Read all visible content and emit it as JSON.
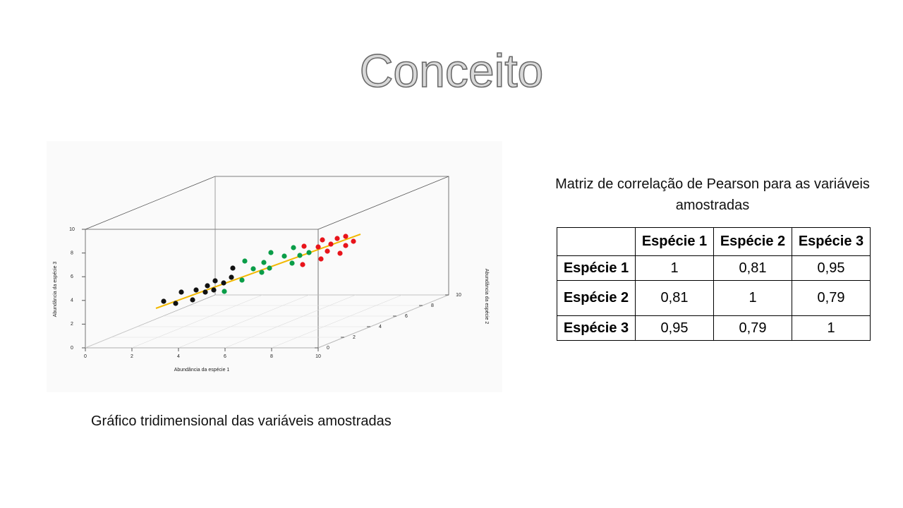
{
  "title": "Conceito",
  "figure": {
    "x_axis_label": "Abundância da espécie 1",
    "y_axis_label": "Abundância da espécie 3",
    "z_axis_label": "Abundância da espécie 2",
    "x_ticks": [
      0,
      2,
      4,
      6,
      8,
      10
    ],
    "y_ticks": [
      0,
      2,
      4,
      6,
      8,
      10
    ],
    "z_ticks": [
      0,
      2,
      4,
      6,
      8,
      10
    ]
  },
  "figure_caption": "Gráfico tridimensional das variáveis amostradas",
  "table": {
    "caption": "Matriz de correlação de Pearson para as variáveis amostradas",
    "columns": [
      "Espécie 1",
      "Espécie 2",
      "Espécie 3"
    ],
    "rows": [
      {
        "label": "Espécie 1",
        "values": [
          "1",
          "0,81",
          "0,95"
        ]
      },
      {
        "label": "Espécie 2",
        "values": [
          "0,81",
          "1",
          "0,79"
        ]
      },
      {
        "label": "Espécie 3",
        "values": [
          "0,95",
          "0,79",
          "1"
        ]
      }
    ]
  }
}
